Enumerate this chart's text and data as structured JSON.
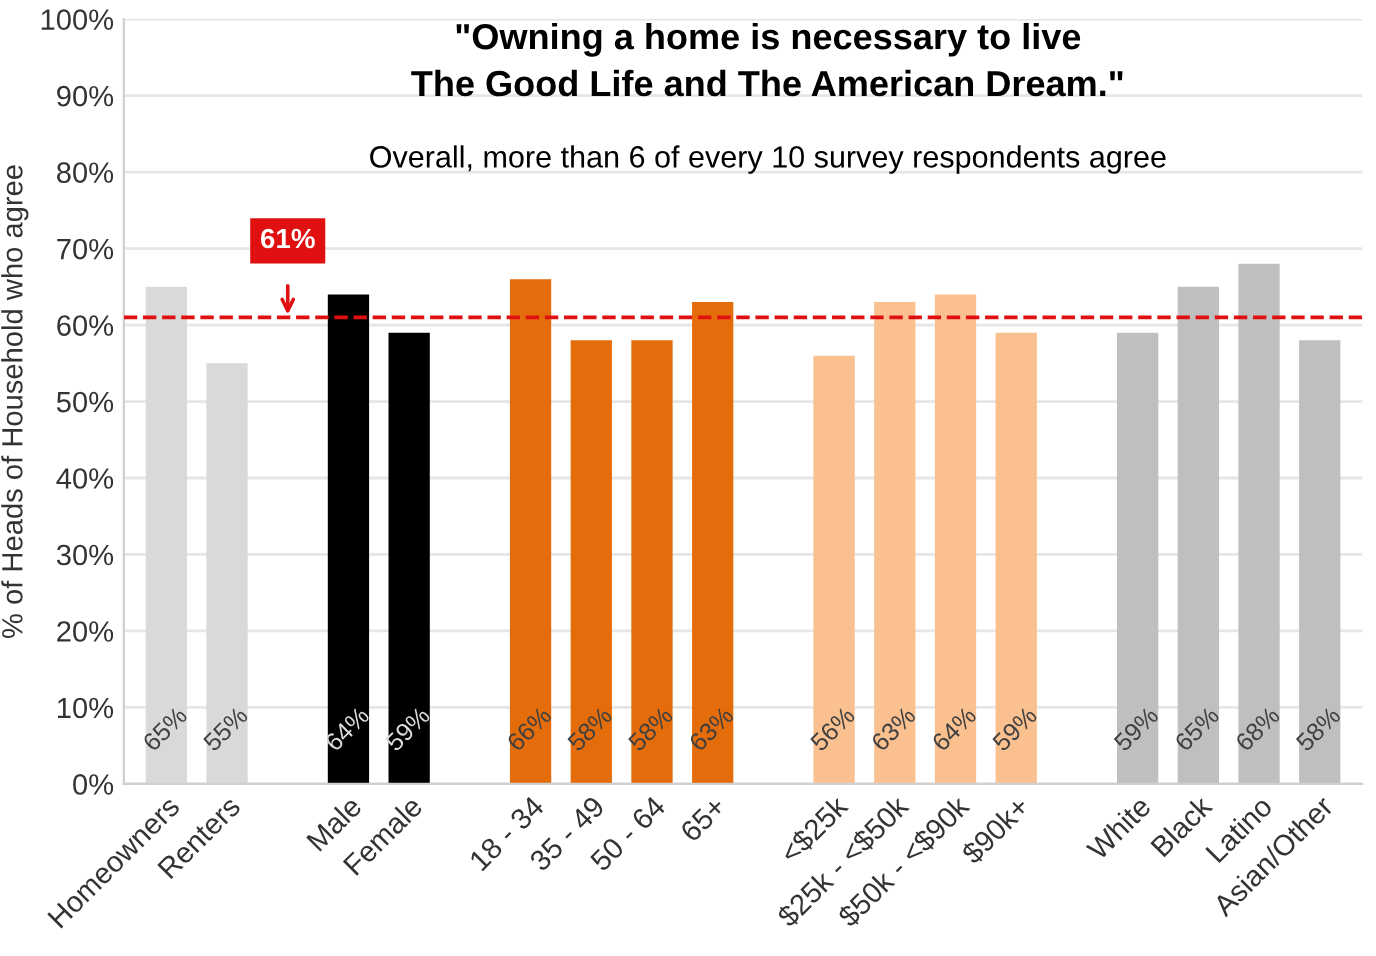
{
  "chart_data": {
    "type": "bar",
    "title": "\"Owning a home is necessary to live\nThe Good Life and The American Dream.\"",
    "subtitle": "Overall, more than 6 of every 10 survey respondents agree",
    "ylabel": "% of Heads of Household who agree",
    "categories": [
      "Homeowners",
      "Renters",
      null,
      "Male",
      "Female",
      null,
      "18 - 34",
      "35 - 49",
      "50 - 64",
      "65+",
      null,
      "<$25k",
      "$25k - <$50k",
      "$50k - <$90k",
      "$90k+",
      null,
      "White",
      "Black",
      "Latino",
      "Asian/Other"
    ],
    "values": [
      65,
      55,
      null,
      64,
      59,
      null,
      66,
      58,
      58,
      63,
      null,
      56,
      63,
      64,
      59,
      null,
      59,
      65,
      68,
      58
    ],
    "colors": [
      "#d9d9d9",
      "#d9d9d9",
      null,
      "#000000",
      "#000000",
      null,
      "#e46c0a",
      "#e46c0a",
      "#e46c0a",
      "#e46c0a",
      null,
      "#fac090",
      "#fac090",
      "#fac090",
      "#fac090",
      null,
      "#bfbfbf",
      "#bfbfbf",
      "#bfbfbf",
      "#bfbfbf"
    ],
    "value_labels": [
      "65%",
      "55%",
      null,
      "64%",
      "59%",
      null,
      "66%",
      "58%",
      "58%",
      "63%",
      null,
      "56%",
      "63%",
      "64%",
      "59%",
      null,
      "59%",
      "65%",
      "68%",
      "58%"
    ],
    "ylim": [
      0,
      100
    ],
    "yticks": [
      {
        "value": 0,
        "label": "0%"
      },
      {
        "value": 10,
        "label": "10%"
      },
      {
        "value": 20,
        "label": "20%"
      },
      {
        "value": 30,
        "label": "30%"
      },
      {
        "value": 40,
        "label": "40%"
      },
      {
        "value": 50,
        "label": "50%"
      },
      {
        "value": 60,
        "label": "60%"
      },
      {
        "value": 70,
        "label": "70%"
      },
      {
        "value": 80,
        "label": "80%"
      },
      {
        "value": 90,
        "label": "90%"
      },
      {
        "value": 100,
        "label": "100%"
      }
    ],
    "ref_lines": [
      {
        "axis": "y",
        "value": 61,
        "label": "61%",
        "color": "#e01010",
        "line_style": "dashed"
      }
    ],
    "grid": "y",
    "legend": false
  }
}
